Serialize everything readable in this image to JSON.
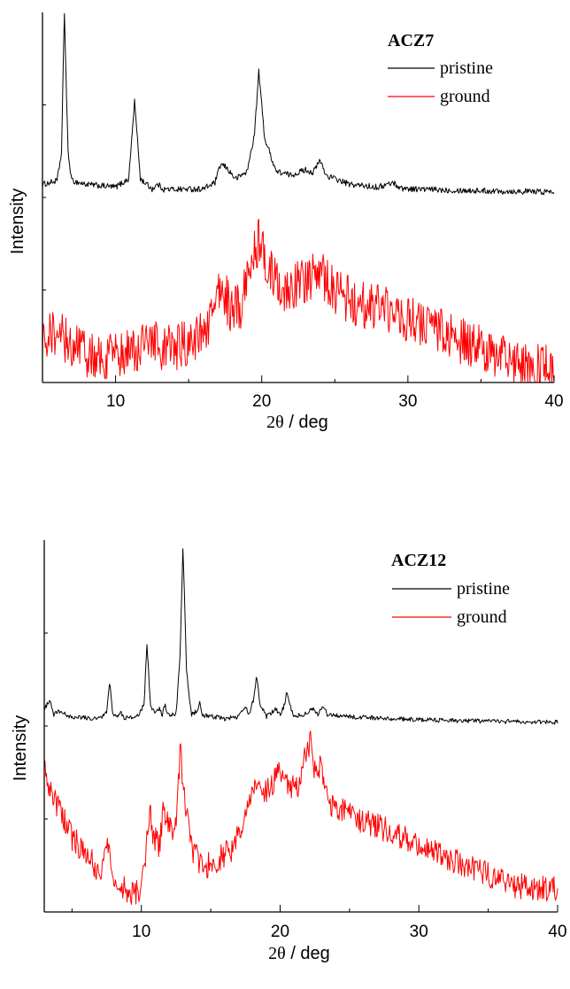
{
  "chart_data": [
    {
      "type": "line",
      "title": "ACZ7",
      "xlabel_theta": "2θ",
      "xlabel_unit": " / deg",
      "ylabel": "Intensity",
      "xlim": [
        5,
        40
      ],
      "ylim": [
        0,
        1
      ],
      "xticks": [
        10,
        20,
        30,
        40
      ],
      "grid": false,
      "legend_position": "top-right",
      "series": [
        {
          "name": "pristine",
          "color": "#000000",
          "noise": 0.008,
          "points": [
            [
              5,
              0.535
            ],
            [
              6,
              0.545
            ],
            [
              6.3,
              0.62
            ],
            [
              6.5,
              1.0
            ],
            [
              6.75,
              0.62
            ],
            [
              7,
              0.545
            ],
            [
              8,
              0.535
            ],
            [
              10,
              0.528
            ],
            [
              10.9,
              0.55
            ],
            [
              11.3,
              0.76
            ],
            [
              11.7,
              0.55
            ],
            [
              12.5,
              0.523
            ],
            [
              12.9,
              0.535
            ],
            [
              13.3,
              0.522
            ],
            [
              16,
              0.523
            ],
            [
              16.8,
              0.54
            ],
            [
              17.2,
              0.59
            ],
            [
              17.6,
              0.58
            ],
            [
              18.2,
              0.55
            ],
            [
              19,
              0.57
            ],
            [
              19.5,
              0.67
            ],
            [
              19.8,
              0.84
            ],
            [
              20.2,
              0.66
            ],
            [
              21,
              0.57
            ],
            [
              22,
              0.56
            ],
            [
              23,
              0.575
            ],
            [
              23.5,
              0.567
            ],
            [
              24,
              0.6
            ],
            [
              24.4,
              0.56
            ],
            [
              26,
              0.535
            ],
            [
              28,
              0.528
            ],
            [
              29,
              0.54
            ],
            [
              29.5,
              0.525
            ],
            [
              31,
              0.522
            ],
            [
              35,
              0.518
            ],
            [
              40,
              0.515
            ]
          ]
        },
        {
          "name": "ground",
          "color": "#ff0000",
          "noise": 0.065,
          "points": [
            [
              5,
              0.13
            ],
            [
              6,
              0.14
            ],
            [
              7,
              0.1
            ],
            [
              8,
              0.08
            ],
            [
              9,
              0.06
            ],
            [
              10,
              0.07
            ],
            [
              11,
              0.09
            ],
            [
              12,
              0.1
            ],
            [
              13,
              0.1
            ],
            [
              13.5,
              0.09
            ],
            [
              14.5,
              0.1
            ],
            [
              15.5,
              0.12
            ],
            [
              16.5,
              0.16
            ],
            [
              17.2,
              0.27
            ],
            [
              17.8,
              0.2
            ],
            [
              18.5,
              0.2
            ],
            [
              19.2,
              0.3
            ],
            [
              19.8,
              0.39
            ],
            [
              20.5,
              0.3
            ],
            [
              21.5,
              0.25
            ],
            [
              22.5,
              0.27
            ],
            [
              23.2,
              0.28
            ],
            [
              24,
              0.3
            ],
            [
              25,
              0.24
            ],
            [
              27,
              0.21
            ],
            [
              29,
              0.19
            ],
            [
              31,
              0.16
            ],
            [
              33,
              0.12
            ],
            [
              35,
              0.09
            ],
            [
              37,
              0.06
            ],
            [
              38.5,
              0.04
            ],
            [
              40,
              0.035
            ]
          ]
        }
      ]
    },
    {
      "type": "line",
      "title": "ACZ12",
      "xlabel_theta": "2θ",
      "xlabel_unit": " / deg",
      "ylabel": "Intensity",
      "xlim": [
        3,
        40
      ],
      "ylim": [
        0,
        1
      ],
      "xticks": [
        10,
        20,
        30,
        40
      ],
      "grid": false,
      "legend_position": "top-right",
      "series": [
        {
          "name": "pristine",
          "color": "#000000",
          "noise": 0.006,
          "points": [
            [
              3,
              0.545
            ],
            [
              3.4,
              0.57
            ],
            [
              3.7,
              0.53
            ],
            [
              4,
              0.538
            ],
            [
              5,
              0.525
            ],
            [
              7,
              0.52
            ],
            [
              7.5,
              0.535
            ],
            [
              7.7,
              0.62
            ],
            [
              7.95,
              0.53
            ],
            [
              8.3,
              0.525
            ],
            [
              8.5,
              0.538
            ],
            [
              8.8,
              0.52
            ],
            [
              9.8,
              0.528
            ],
            [
              10.2,
              0.56
            ],
            [
              10.4,
              0.72
            ],
            [
              10.65,
              0.56
            ],
            [
              11,
              0.53
            ],
            [
              11.3,
              0.55
            ],
            [
              11.5,
              0.53
            ],
            [
              11.7,
              0.56
            ],
            [
              11.9,
              0.53
            ],
            [
              12.5,
              0.53
            ],
            [
              12.8,
              0.7
            ],
            [
              13.0,
              0.99
            ],
            [
              13.25,
              0.65
            ],
            [
              13.6,
              0.53
            ],
            [
              14,
              0.54
            ],
            [
              14.2,
              0.565
            ],
            [
              14.4,
              0.53
            ],
            [
              16,
              0.52
            ],
            [
              17,
              0.525
            ],
            [
              17.5,
              0.55
            ],
            [
              17.8,
              0.53
            ],
            [
              18.1,
              0.575
            ],
            [
              18.3,
              0.635
            ],
            [
              18.55,
              0.56
            ],
            [
              19,
              0.525
            ],
            [
              19.7,
              0.545
            ],
            [
              20,
              0.53
            ],
            [
              20.3,
              0.555
            ],
            [
              20.5,
              0.595
            ],
            [
              20.75,
              0.55
            ],
            [
              21,
              0.525
            ],
            [
              22,
              0.535
            ],
            [
              22.3,
              0.55
            ],
            [
              22.7,
              0.53
            ],
            [
              23.1,
              0.555
            ],
            [
              23.4,
              0.53
            ],
            [
              25,
              0.525
            ],
            [
              28,
              0.52
            ],
            [
              32,
              0.515
            ],
            [
              36,
              0.512
            ],
            [
              40,
              0.51
            ]
          ]
        },
        {
          "name": "ground",
          "color": "#ff0000",
          "noise": 0.035,
          "points": [
            [
              3,
              0.38
            ],
            [
              4,
              0.28
            ],
            [
              5,
              0.2
            ],
            [
              6,
              0.16
            ],
            [
              7,
              0.1
            ],
            [
              7.4,
              0.15
            ],
            [
              7.6,
              0.18
            ],
            [
              7.9,
              0.1
            ],
            [
              8.5,
              0.07
            ],
            [
              9.5,
              0.05
            ],
            [
              10,
              0.07
            ],
            [
              10.3,
              0.15
            ],
            [
              10.6,
              0.27
            ],
            [
              10.9,
              0.2
            ],
            [
              11.3,
              0.18
            ],
            [
              11.6,
              0.28
            ],
            [
              12,
              0.22
            ],
            [
              12.5,
              0.22
            ],
            [
              12.8,
              0.44
            ],
            [
              13.1,
              0.3
            ],
            [
              13.6,
              0.17
            ],
            [
              14.5,
              0.12
            ],
            [
              15.5,
              0.14
            ],
            [
              16.5,
              0.17
            ],
            [
              17.5,
              0.25
            ],
            [
              18.2,
              0.36
            ],
            [
              18.8,
              0.32
            ],
            [
              19.5,
              0.35
            ],
            [
              20,
              0.38
            ],
            [
              20.6,
              0.34
            ],
            [
              21.2,
              0.33
            ],
            [
              21.8,
              0.42
            ],
            [
              22.2,
              0.46
            ],
            [
              22.5,
              0.38
            ],
            [
              23,
              0.39
            ],
            [
              23.5,
              0.3
            ],
            [
              24,
              0.28
            ],
            [
              25,
              0.26
            ],
            [
              27,
              0.23
            ],
            [
              29,
              0.2
            ],
            [
              31,
              0.16
            ],
            [
              33,
              0.13
            ],
            [
              35,
              0.1
            ],
            [
              37,
              0.07
            ],
            [
              40,
              0.06
            ]
          ]
        }
      ]
    }
  ]
}
